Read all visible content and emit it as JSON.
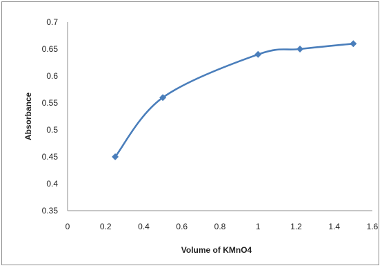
{
  "chart_data": {
    "type": "line",
    "title": "",
    "xlabel": "Volume of KMnO4",
    "ylabel": "Absorbance",
    "xlim": [
      0,
      1.6
    ],
    "ylim": [
      0.35,
      0.7
    ],
    "x_ticks": [
      "0",
      "0.2",
      "0.4",
      "0.6",
      "0.8",
      "1",
      "1.2",
      "1.4",
      "1.6"
    ],
    "y_ticks": [
      "0.35",
      "0.4",
      "0.45",
      "0.5",
      "0.55",
      "0.6",
      "0.65",
      "0.7"
    ],
    "grid": false,
    "legend": "none",
    "series": [
      {
        "color": "#4a7ebb",
        "marker": "diamond",
        "smooth": true,
        "x": [
          0.25,
          0.5,
          1.0,
          1.22,
          1.5
        ],
        "y": [
          0.45,
          0.56,
          0.64,
          0.65,
          0.66
        ]
      }
    ]
  }
}
